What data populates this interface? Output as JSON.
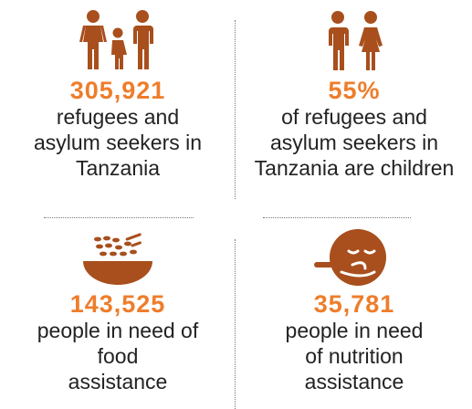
{
  "colors": {
    "accent": "#ee7d2b",
    "icon": "#a84f1d",
    "text": "#222222"
  },
  "stats": [
    {
      "icon": "family-icon",
      "value": "305,921",
      "text": "refugees and\nasylum seekers in\nTanzania"
    },
    {
      "icon": "children-icon",
      "value": "55%",
      "text": "of refugees and\nasylum seekers in\nTanzania are children"
    },
    {
      "icon": "food-bowl-icon",
      "value": "143,525",
      "text": "people in need of\nfood\nassistance"
    },
    {
      "icon": "baby-feeding-icon",
      "value": "35,781",
      "text": "people in need\nof nutrition\nassistance"
    }
  ]
}
